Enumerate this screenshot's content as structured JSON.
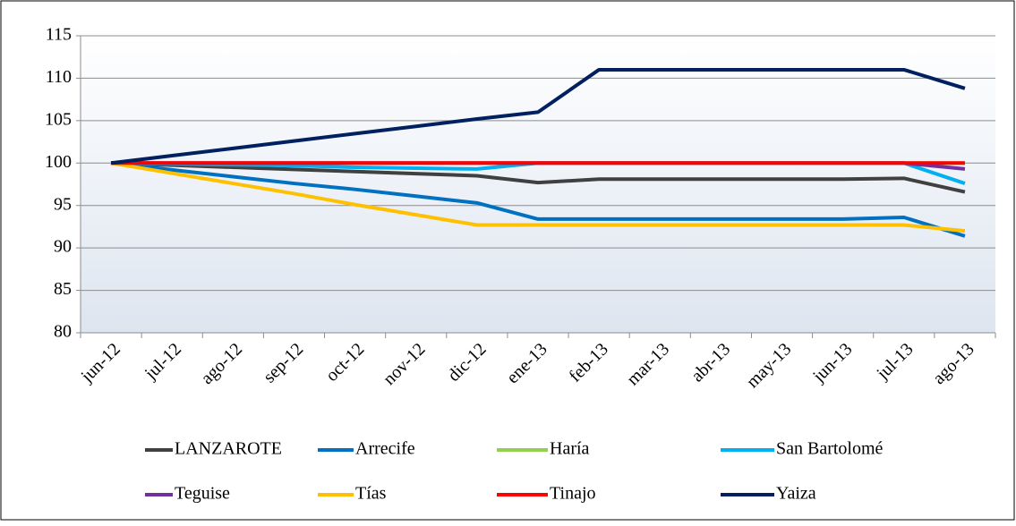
{
  "chart_data": {
    "type": "line",
    "categories": [
      "jun-12",
      "jul-12",
      "ago-12",
      "sep-12",
      "oct-12",
      "nov-12",
      "dic-12",
      "ene-13",
      "feb-13",
      "mar-13",
      "abr-13",
      "may-13",
      "jun-13",
      "jul-13",
      "ago-13"
    ],
    "series": [
      {
        "name": "LANZAROTE",
        "color": "#404040",
        "values": [
          100,
          99.75,
          99.5,
          99.25,
          99.0,
          98.75,
          98.5,
          97.7,
          98.1,
          98.1,
          98.1,
          98.1,
          98.1,
          98.2,
          96.6
        ]
      },
      {
        "name": "Arrecife",
        "color": "#0070c0",
        "values": [
          100,
          99.2,
          98.4,
          97.6,
          96.9,
          96.1,
          95.3,
          93.4,
          93.4,
          93.4,
          93.4,
          93.4,
          93.4,
          93.6,
          91.4
        ]
      },
      {
        "name": "Haría",
        "color": "#92d050",
        "values": [
          100,
          100,
          100,
          100,
          100,
          100,
          100,
          100,
          100,
          100,
          100,
          100,
          100,
          100,
          100
        ]
      },
      {
        "name": "San Bartolomé",
        "color": "#00b0f0",
        "values": [
          100,
          99.9,
          99.8,
          99.7,
          99.5,
          99.4,
          99.3,
          100,
          100,
          100,
          100,
          100,
          100,
          100,
          97.6
        ]
      },
      {
        "name": "Teguise",
        "color": "#7030a0",
        "values": [
          100,
          100,
          100,
          100,
          100,
          100,
          100,
          100,
          100,
          100,
          100,
          100,
          100,
          100,
          99.3
        ]
      },
      {
        "name": "Tías",
        "color": "#ffc000",
        "values": [
          100,
          98.8,
          97.6,
          96.4,
          95.1,
          93.9,
          92.7,
          92.7,
          92.7,
          92.7,
          92.7,
          92.7,
          92.7,
          92.7,
          92.0
        ]
      },
      {
        "name": "Tinajo",
        "color": "#ff0000",
        "values": [
          100,
          100,
          100,
          100,
          100,
          100,
          100,
          100,
          100,
          100,
          100,
          100,
          100,
          100,
          100
        ]
      },
      {
        "name": "Yaiza",
        "color": "#002060",
        "values": [
          100,
          100.87,
          101.73,
          102.6,
          103.47,
          104.33,
          105.2,
          106.0,
          111,
          111,
          111,
          111,
          111,
          111,
          108.8
        ]
      }
    ],
    "ylim": [
      80,
      115
    ],
    "yticks": [
      80,
      85,
      90,
      95,
      100,
      105,
      110,
      115
    ],
    "grid": true,
    "legend": "bottom"
  }
}
